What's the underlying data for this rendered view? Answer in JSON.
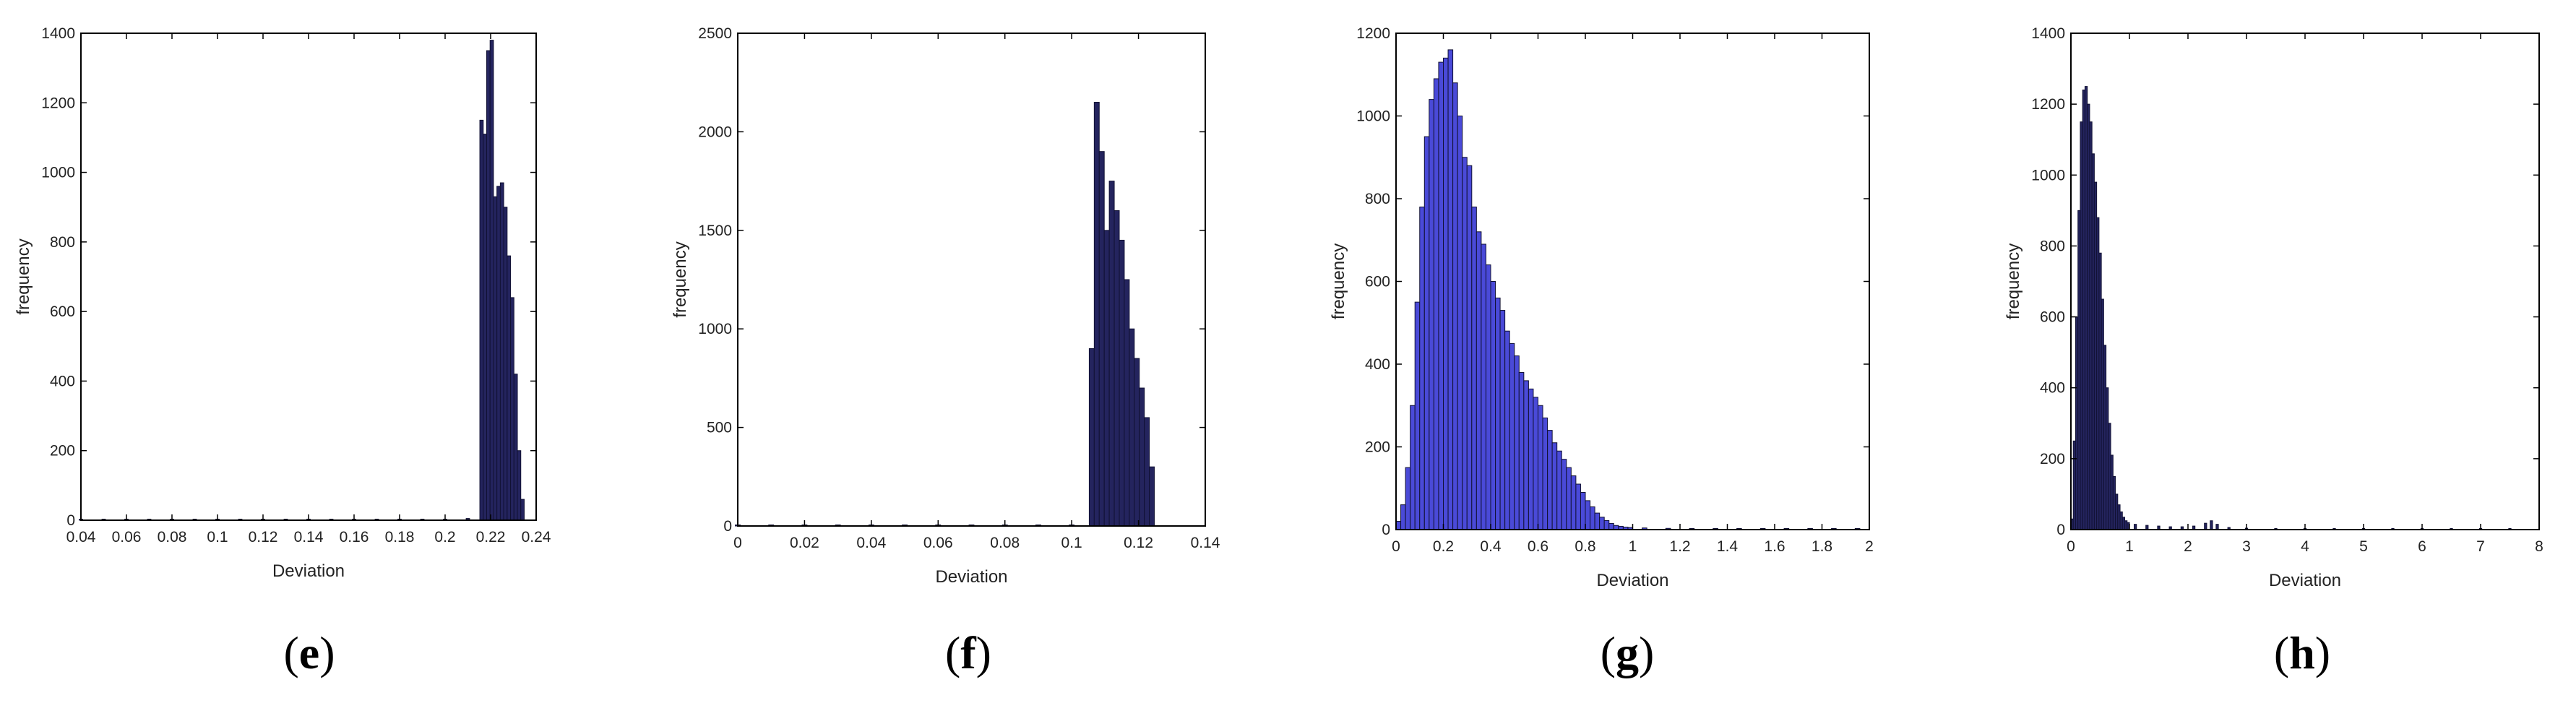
{
  "colors": {
    "dark_navy_bars": "#24245e",
    "blue_bars": "#4a4ad8",
    "bar_edge": "#111133",
    "axes_box": "#000000"
  },
  "panels": [
    {
      "letter": "e"
    },
    {
      "letter": "f"
    },
    {
      "letter": "g"
    },
    {
      "letter": "h"
    }
  ],
  "chart_data": [
    {
      "panel": "(e)",
      "type": "bar",
      "xlabel": "Deviation",
      "ylabel": "frequency",
      "xlim": [
        0.04,
        0.24
      ],
      "ylim": [
        0,
        1400
      ],
      "xticks": [
        0.04,
        0.06,
        0.08,
        0.1,
        0.12,
        0.14,
        0.16,
        0.18,
        0.2,
        0.22,
        0.24
      ],
      "xtick_labels": [
        "0.04",
        "0.06",
        "0.08",
        "0.1",
        "0.12",
        "0.14",
        "0.16",
        "0.18",
        "0.2",
        "0.22",
        "0.24"
      ],
      "yticks": [
        0,
        200,
        400,
        600,
        800,
        1000,
        1200,
        1400
      ],
      "ytick_labels": [
        "0",
        "200",
        "400",
        "600",
        "800",
        "1000",
        "1200",
        "1400"
      ],
      "bar_color": "#24245e",
      "x": [
        0.04,
        0.05,
        0.06,
        0.07,
        0.08,
        0.09,
        0.1,
        0.11,
        0.12,
        0.13,
        0.14,
        0.15,
        0.16,
        0.17,
        0.18,
        0.19,
        0.2,
        0.21,
        0.216,
        0.2175,
        0.219,
        0.2205,
        0.222,
        0.2235,
        0.225,
        0.2265,
        0.228,
        0.2295,
        0.231,
        0.2325,
        0.234
      ],
      "values": [
        2,
        2,
        2,
        2,
        2,
        2,
        2,
        2,
        2,
        2,
        2,
        2,
        2,
        2,
        2,
        2,
        3,
        5,
        1150,
        1110,
        1350,
        1380,
        930,
        960,
        970,
        900,
        760,
        640,
        420,
        200,
        60
      ]
    },
    {
      "panel": "(f)",
      "type": "bar",
      "xlabel": "Deviation",
      "ylabel": "frequency",
      "xlim": [
        0,
        0.14
      ],
      "ylim": [
        0,
        2500
      ],
      "xticks": [
        0,
        0.02,
        0.04,
        0.06,
        0.08,
        0.1,
        0.12,
        0.14
      ],
      "xtick_labels": [
        "0",
        "0.02",
        "0.04",
        "0.06",
        "0.08",
        "0.1",
        "0.12",
        "0.14"
      ],
      "yticks": [
        0,
        500,
        1000,
        1500,
        2000,
        2500
      ],
      "ytick_labels": [
        "0",
        "500",
        "1000",
        "1500",
        "2000",
        "2500"
      ],
      "bar_color": "#24245e",
      "x": [
        0.0,
        0.01,
        0.02,
        0.03,
        0.04,
        0.05,
        0.06,
        0.07,
        0.08,
        0.09,
        0.1,
        0.106,
        0.1075,
        0.109,
        0.1105,
        0.112,
        0.1135,
        0.115,
        0.1165,
        0.118,
        0.1195,
        0.121,
        0.1225,
        0.124
      ],
      "values": [
        2,
        2,
        2,
        2,
        2,
        2,
        2,
        2,
        2,
        2,
        3,
        900,
        2150,
        1900,
        1500,
        1750,
        1600,
        1450,
        1250,
        1000,
        850,
        700,
        550,
        300
      ]
    },
    {
      "panel": "(g)",
      "type": "bar",
      "xlabel": "Deviation",
      "ylabel": "frequency",
      "xlim": [
        0,
        2
      ],
      "ylim": [
        0,
        1200
      ],
      "xticks": [
        0,
        0.2,
        0.4,
        0.6,
        0.8,
        1,
        1.2,
        1.4,
        1.6,
        1.8,
        2
      ],
      "xtick_labels": [
        "0",
        "0.2",
        "0.4",
        "0.6",
        "0.8",
        "1",
        "1.2",
        "1.4",
        "1.6",
        "1.8",
        "2"
      ],
      "yticks": [
        0,
        200,
        400,
        600,
        800,
        1000,
        1200
      ],
      "ytick_labels": [
        "0",
        "200",
        "400",
        "600",
        "800",
        "1000",
        "1200"
      ],
      "bar_color": "#4a4ad8",
      "x": [
        0.01,
        0.03,
        0.05,
        0.07,
        0.09,
        0.11,
        0.13,
        0.15,
        0.17,
        0.19,
        0.21,
        0.23,
        0.25,
        0.27,
        0.29,
        0.31,
        0.33,
        0.35,
        0.37,
        0.39,
        0.41,
        0.43,
        0.45,
        0.47,
        0.49,
        0.51,
        0.53,
        0.55,
        0.57,
        0.59,
        0.61,
        0.63,
        0.65,
        0.67,
        0.69,
        0.71,
        0.73,
        0.75,
        0.77,
        0.79,
        0.81,
        0.83,
        0.85,
        0.87,
        0.89,
        0.91,
        0.93,
        0.95,
        0.97,
        0.99,
        1.05,
        1.15,
        1.25,
        1.35,
        1.45,
        1.55,
        1.65,
        1.75,
        1.85,
        1.95
      ],
      "values": [
        20,
        60,
        150,
        300,
        550,
        780,
        950,
        1040,
        1090,
        1130,
        1140,
        1160,
        1080,
        1000,
        900,
        880,
        780,
        720,
        690,
        640,
        600,
        560,
        530,
        480,
        450,
        420,
        380,
        360,
        340,
        320,
        300,
        270,
        240,
        210,
        190,
        170,
        150,
        130,
        110,
        90,
        70,
        55,
        40,
        30,
        22,
        15,
        10,
        8,
        6,
        5,
        4,
        3,
        2,
        2,
        1,
        1,
        1,
        1,
        1,
        1
      ]
    },
    {
      "panel": "(h)",
      "type": "bar",
      "xlabel": "Deviation",
      "ylabel": "frequency",
      "xlim": [
        0,
        8
      ],
      "ylim": [
        0,
        1400
      ],
      "xticks": [
        0,
        1,
        2,
        3,
        4,
        5,
        6,
        7,
        8
      ],
      "xtick_labels": [
        "0",
        "1",
        "2",
        "3",
        "4",
        "5",
        "6",
        "7",
        "8"
      ],
      "yticks": [
        0,
        200,
        400,
        600,
        800,
        1000,
        1200,
        1400
      ],
      "ytick_labels": [
        "0",
        "200",
        "400",
        "600",
        "800",
        "1000",
        "1200",
        "1400"
      ],
      "bar_color": "#24245e",
      "x": [
        0.02,
        0.06,
        0.1,
        0.14,
        0.18,
        0.22,
        0.26,
        0.3,
        0.34,
        0.38,
        0.42,
        0.46,
        0.5,
        0.54,
        0.58,
        0.62,
        0.66,
        0.7,
        0.74,
        0.78,
        0.82,
        0.86,
        0.9,
        0.94,
        0.98,
        1.1,
        1.3,
        1.5,
        1.7,
        1.9,
        2.1,
        2.3,
        2.4,
        2.5,
        2.7,
        3.0,
        3.5,
        4.0,
        4.5,
        5.0,
        5.5,
        6.0,
        6.5,
        7.0,
        7.5
      ],
      "values": [
        30,
        250,
        600,
        900,
        1150,
        1240,
        1250,
        1200,
        1150,
        1060,
        980,
        880,
        780,
        650,
        520,
        400,
        300,
        210,
        150,
        100,
        70,
        50,
        35,
        25,
        20,
        15,
        12,
        10,
        8,
        8,
        10,
        18,
        25,
        15,
        6,
        4,
        3,
        2,
        2,
        1,
        1,
        1,
        1,
        1,
        1
      ]
    }
  ]
}
